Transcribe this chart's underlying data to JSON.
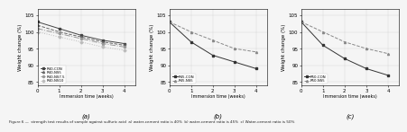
{
  "panel_a": {
    "label": "(a)",
    "xlabel": "Immersion time (weeks)",
    "ylabel": "Weight change (%)",
    "ylim": [
      84,
      107
    ],
    "xlim": [
      0,
      4.5
    ],
    "xticks": [
      0,
      1,
      2,
      3,
      4
    ],
    "yticks": [
      85,
      90,
      95,
      100,
      105
    ],
    "series": [
      {
        "label": "R40-CON",
        "x": [
          0,
          1,
          2,
          3,
          4
        ],
        "y": [
          103,
          101,
          99,
          97.5,
          96.5
        ],
        "color": "#444444",
        "linestyle": "-",
        "marker": "s",
        "markersize": 1.5
      },
      {
        "label": "R40-NS5",
        "x": [
          0,
          1,
          2,
          3,
          4
        ],
        "y": [
          102,
          100,
          98.5,
          97,
          96
        ],
        "color": "#666666",
        "linestyle": "--",
        "marker": "^",
        "markersize": 1.5
      },
      {
        "label": "R40-NS7.5",
        "x": [
          0,
          1,
          2,
          3,
          4
        ],
        "y": [
          101,
          99.5,
          98,
          96.5,
          95.5
        ],
        "color": "#999999",
        "linestyle": "-.",
        "marker": "o",
        "markersize": 1.5
      },
      {
        "label": "R40-NS10",
        "x": [
          0,
          1,
          2,
          3,
          4
        ],
        "y": [
          100,
          98.5,
          97,
          95.5,
          94.5
        ],
        "color": "#bbbbbb",
        "linestyle": ":",
        "marker": "D",
        "markersize": 1.5
      }
    ],
    "legend_loc": "lower left"
  },
  "panel_b": {
    "label": "(b)",
    "xlabel": "Immersion time (weeks)",
    "ylabel": "Weight change (%)",
    "ylim": [
      84,
      107
    ],
    "xlim": [
      0,
      4.5
    ],
    "xticks": [
      0,
      1,
      2,
      3,
      4
    ],
    "yticks": [
      85,
      90,
      95,
      100,
      105
    ],
    "series": [
      {
        "label": "R45-CON",
        "x": [
          0,
          1,
          2,
          3,
          4
        ],
        "y": [
          103,
          97,
          93,
          91,
          89
        ],
        "color": "#333333",
        "linestyle": "-",
        "marker": "s",
        "markersize": 1.5
      },
      {
        "label": "R45-NS5",
        "x": [
          0,
          1,
          2,
          3,
          4
        ],
        "y": [
          103,
          100,
          97.5,
          95,
          94
        ],
        "color": "#888888",
        "linestyle": "--",
        "marker": "^",
        "markersize": 1.5
      }
    ],
    "legend_loc": "lower left"
  },
  "panel_c": {
    "label": "(c)",
    "xlabel": "Immersion time (weeks)",
    "ylabel": "Weight change (%)",
    "ylim": [
      84,
      107
    ],
    "xlim": [
      0,
      4.5
    ],
    "xticks": [
      0,
      1,
      2,
      3,
      4
    ],
    "yticks": [
      85,
      90,
      95,
      100,
      105
    ],
    "series": [
      {
        "label": "R50-CON",
        "x": [
          0,
          1,
          2,
          3,
          4
        ],
        "y": [
          103,
          96,
          92,
          89,
          87
        ],
        "color": "#333333",
        "linestyle": "-",
        "marker": "s",
        "markersize": 1.5
      },
      {
        "label": "R50-NS5",
        "x": [
          0,
          1,
          2,
          3,
          4
        ],
        "y": [
          103,
          100,
          97,
          95,
          93.5
        ],
        "color": "#888888",
        "linestyle": "--",
        "marker": "^",
        "markersize": 1.5
      }
    ],
    "legend_loc": "lower left"
  },
  "caption": "Figure 6 —  strength test results of sample against sulfuric acid  a) water-cement ratio is 40%  b) water-cement ratio is 45%  c) Water-cement ratio is 50%",
  "background_color": "#f5f5f5",
  "grid_color": "#cccccc",
  "fig_width": 4.5,
  "fig_height": 1.5,
  "fig_dpi": 100,
  "crop_dpi": 100
}
